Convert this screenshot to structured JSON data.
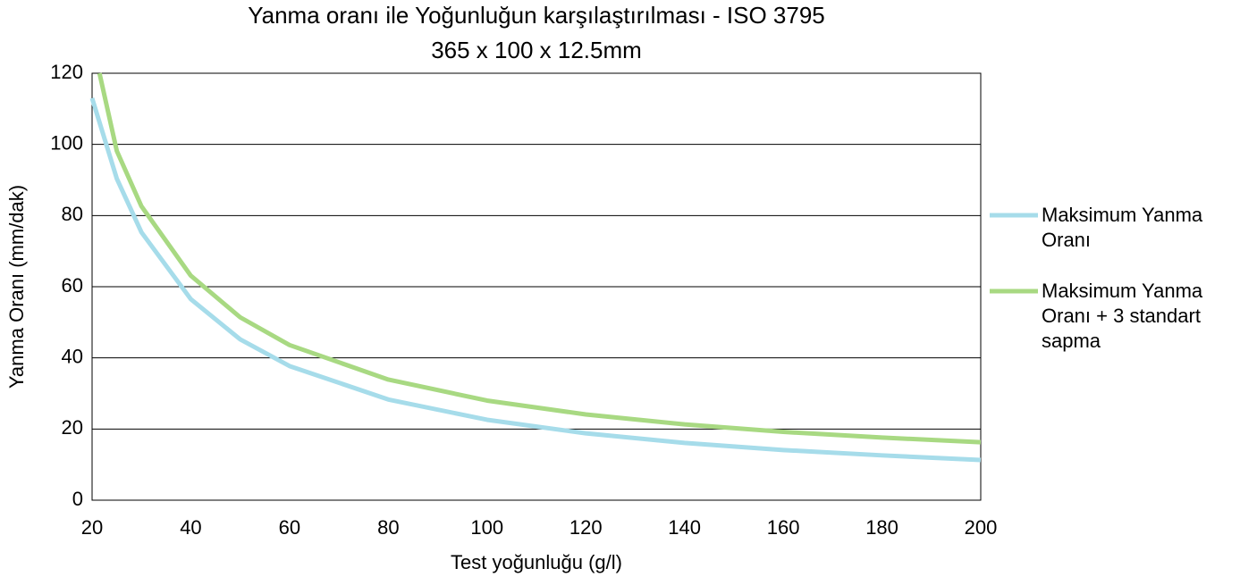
{
  "chart_data": {
    "type": "line",
    "title": "Yanma oranı ile Yoğunluğun karşılaştırılması - ISO 3795",
    "subtitle": "365 x 100 x 12.5mm",
    "x_label": "Test yoğunluğu (g/l)",
    "y_label": "Yanma Oranı (mm/dak)",
    "xlim": [
      20,
      200
    ],
    "xticks": [
      20,
      40,
      60,
      80,
      100,
      120,
      140,
      160,
      180,
      200
    ],
    "ylim": [
      0,
      120
    ],
    "yticks": [
      0,
      20,
      40,
      60,
      80,
      100,
      120
    ],
    "grid": true,
    "legend": "right",
    "series": [
      {
        "name": "Maksimum Yanma Oranı",
        "color": "#a6dcea",
        "x": [
          20,
          25,
          30,
          40,
          50,
          60,
          80,
          100,
          120,
          140,
          160,
          180,
          200
        ],
        "values": [
          113,
          90.4,
          75.3,
          56.5,
          45.2,
          37.7,
          28.3,
          22.6,
          18.8,
          16.1,
          14.1,
          12.6,
          11.3
        ]
      },
      {
        "name": "Maksimum Yanma Oranı + 3 standart sapma",
        "color": "#a8d982",
        "x": [
          21.5,
          25,
          30,
          40,
          50,
          60,
          80,
          100,
          120,
          140,
          160,
          180,
          200
        ],
        "values": [
          120,
          98.2,
          82.6,
          63.1,
          51.4,
          43.6,
          33.9,
          28,
          24.1,
          21.3,
          19.2,
          17.6,
          16.3
        ]
      }
    ]
  }
}
